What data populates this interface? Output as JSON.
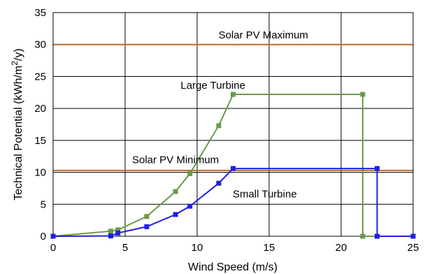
{
  "chart_data": {
    "type": "line",
    "xlabel": "Wind Speed (m/s)",
    "ylabel_parts": {
      "pre": "Technical Potential (kWh/m",
      "sup": "2",
      "post": "/y)"
    },
    "xlim": [
      0,
      25
    ],
    "ylim": [
      0,
      35
    ],
    "xticks": [
      "0",
      "5",
      "10",
      "15",
      "20",
      "25"
    ],
    "yticks": [
      "0",
      "5",
      "10",
      "15",
      "20",
      "25",
      "30",
      "35"
    ],
    "grid": true,
    "series": [
      {
        "name": "Large Turbine",
        "color": "#6a9a4a",
        "marker": "square",
        "points": [
          [
            0,
            0
          ],
          [
            4,
            0.8
          ],
          [
            4.5,
            1.0
          ],
          [
            6.5,
            3.1
          ],
          [
            8.5,
            7.0
          ],
          [
            9.5,
            9.8
          ],
          [
            11.5,
            17.3
          ],
          [
            12.5,
            22.2
          ],
          [
            21.5,
            22.2
          ],
          [
            21.5,
            0
          ],
          [
            25,
            0
          ]
        ]
      },
      {
        "name": "Small Turbine",
        "color": "#1f1fe0",
        "marker": "square",
        "points": [
          [
            0,
            0
          ],
          [
            4,
            0.05
          ],
          [
            4.5,
            0.5
          ],
          [
            6.5,
            1.5
          ],
          [
            8.5,
            3.4
          ],
          [
            9.5,
            4.7
          ],
          [
            11.5,
            8.3
          ],
          [
            12.5,
            10.6
          ],
          [
            22.5,
            10.6
          ],
          [
            22.5,
            0
          ],
          [
            25,
            0
          ]
        ]
      }
    ],
    "reference_lines": [
      {
        "name": "Solar PV Maximum",
        "y": 30,
        "color": "#c06a2b"
      },
      {
        "name": "Solar PV Minimum",
        "y": 10.3,
        "color": "#c06a2b"
      }
    ],
    "annotations": [
      {
        "text": "Solar PV Maximum",
        "x": 14.6,
        "y": 31.5
      },
      {
        "text": "Large Turbine",
        "x": 11.1,
        "y": 23.6
      },
      {
        "text": "Solar PV Minimum",
        "x": 8.5,
        "y": 12.0
      },
      {
        "text": "Small Turbine",
        "x": 14.7,
        "y": 6.6
      }
    ]
  }
}
